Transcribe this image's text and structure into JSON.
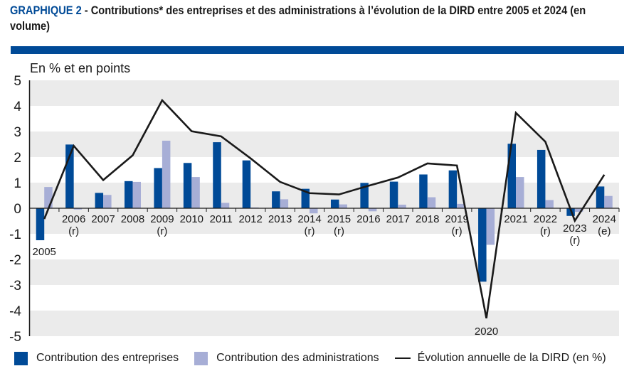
{
  "header": {
    "title_prefix": "GRAPHIQUE 2",
    "title_text": " - Contributions* des entreprises et des administrations à l’évolution de la DIRD entre 2005 et 2024 (en volume)"
  },
  "colors": {
    "entreprises": "#004a97",
    "administrations": "#a7aed6",
    "line": "#1a1a1a",
    "band": "#ebebeb",
    "accent": "#004a97"
  },
  "chart_data": {
    "type": "bar",
    "title": "GRAPHIQUE 2 - Contributions* des entreprises et des administrations à l’évolution de la DIRD entre 2005 et 2024 (en volume)",
    "ylabel": "En % et en points",
    "xlabel": "",
    "ylim": [
      -5,
      5
    ],
    "yticks": [
      "5",
      "4",
      "3",
      "2",
      "1",
      "0",
      "-1",
      "-2",
      "-3",
      "-4",
      "-5"
    ],
    "grid": "alternating horizontal bands",
    "legend_position": "bottom",
    "categories": [
      {
        "year": "2005",
        "note": ""
      },
      {
        "year": "2006",
        "note": "(r)"
      },
      {
        "year": "2007",
        "note": ""
      },
      {
        "year": "2008",
        "note": ""
      },
      {
        "year": "2009",
        "note": "(r)"
      },
      {
        "year": "2010",
        "note": ""
      },
      {
        "year": "2011",
        "note": ""
      },
      {
        "year": "2012",
        "note": ""
      },
      {
        "year": "2013",
        "note": ""
      },
      {
        "year": "2014",
        "note": "(r)"
      },
      {
        "year": "2015",
        "note": "(r)"
      },
      {
        "year": "2016",
        "note": ""
      },
      {
        "year": "2017",
        "note": ""
      },
      {
        "year": "2018",
        "note": ""
      },
      {
        "year": "2019",
        "note": "(r)"
      },
      {
        "year": "2020",
        "note": ""
      },
      {
        "year": "2021",
        "note": ""
      },
      {
        "year": "2022",
        "note": "(r)"
      },
      {
        "year": "2023",
        "note": "(r)"
      },
      {
        "year": "2024",
        "note": "(e)"
      }
    ],
    "series": [
      {
        "name": "Contribution des entreprises",
        "type": "bar",
        "values": [
          -1.25,
          2.49,
          0.6,
          1.06,
          1.57,
          1.77,
          2.58,
          1.87,
          0.66,
          0.76,
          0.34,
          0.99,
          1.04,
          1.32,
          1.48,
          -2.87,
          2.52,
          2.28,
          -0.3,
          0.85
        ]
      },
      {
        "name": "Contribution des administrations",
        "type": "bar",
        "values": [
          0.83,
          -0.05,
          0.52,
          1.03,
          2.64,
          1.22,
          0.21,
          0.03,
          0.35,
          -0.2,
          0.15,
          -0.12,
          0.14,
          0.43,
          0.17,
          -1.43,
          1.22,
          0.32,
          -0.14,
          0.48
        ]
      },
      {
        "name": "Évolution annuelle de la DIRD (en %)",
        "type": "line",
        "values": [
          -0.42,
          2.44,
          1.1,
          2.07,
          4.22,
          3.01,
          2.81,
          1.95,
          1.03,
          0.59,
          0.54,
          0.88,
          1.2,
          1.75,
          1.67,
          -4.3,
          3.73,
          2.6,
          -0.49,
          1.31
        ]
      }
    ]
  },
  "legend": {
    "items": [
      {
        "label": "Contribution des entreprises",
        "kind": "bar",
        "color": "#004a97"
      },
      {
        "label": "Contribution des administrations",
        "kind": "bar",
        "color": "#a7aed6"
      },
      {
        "label": "Évolution annuelle de la DIRD (en %)",
        "kind": "line",
        "color": "#1a1a1a"
      }
    ]
  }
}
